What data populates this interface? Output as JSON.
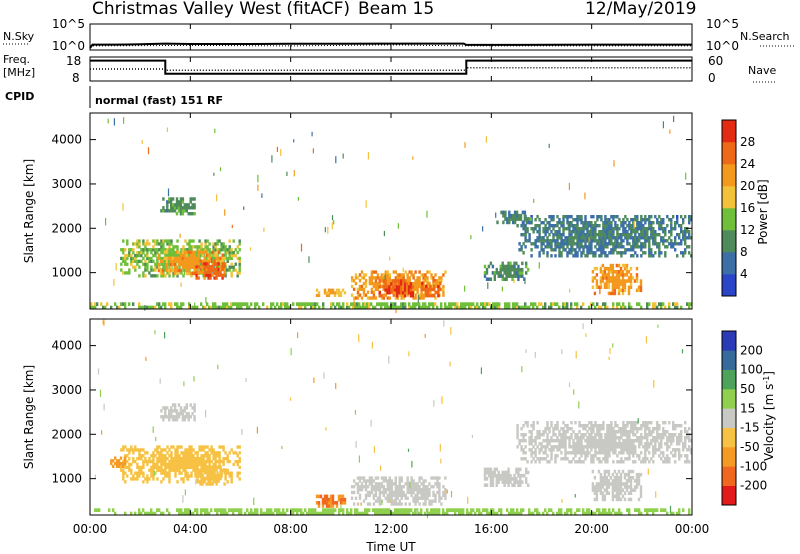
{
  "header": {
    "title": "Christmas Valley West (fitACF)",
    "beam": "Beam 15",
    "date": "12/May/2019"
  },
  "sky_panel": {
    "left_label": "N.Sky",
    "left_ticks": [
      "10^5",
      "10^0"
    ],
    "right_label": "N.Search",
    "right_ticks": [
      "10^5",
      "10^0"
    ]
  },
  "freq_panel": {
    "left_label_1": "Freq.",
    "left_label_2": "[MHz]",
    "left_ticks": [
      "18",
      "8"
    ],
    "right_label": "Nave",
    "right_ticks": [
      "60",
      "0"
    ]
  },
  "cpid_panel": {
    "label": "CPID",
    "text": "normal (fast) 151 RF"
  },
  "x_axis": {
    "label": "Time UT",
    "ticks": [
      "00:00",
      "04:00",
      "08:00",
      "12:00",
      "16:00",
      "20:00",
      "00:00"
    ]
  },
  "colors": {
    "power_scale": [
      "#2b45c8",
      "#3c6fa8",
      "#4e8a5a",
      "#6fbf3a",
      "#f2c23a",
      "#f39a1e",
      "#ef6a18",
      "#e32b14"
    ],
    "velocity_scale": [
      "#e31a1c",
      "#f06820",
      "#f59a25",
      "#f7c244",
      "#c8c8c4",
      "#8fd04e",
      "#4ea35a",
      "#356a9a",
      "#2b3bb8"
    ]
  },
  "chart_data": [
    {
      "type": "line",
      "title": "N.Sky / N.Search",
      "xlabel": "Time UT",
      "x_range_hours": [
        0,
        24
      ],
      "y_scale": "log",
      "ylim": [
        1,
        100000
      ],
      "series": [
        {
          "name": "N.Sky",
          "x": [
            0,
            0.1,
            1,
            2,
            3,
            4,
            6,
            8,
            10,
            12,
            14,
            14.9,
            15,
            17,
            20,
            24
          ],
          "y": [
            1,
            6,
            6,
            7,
            10,
            8,
            8,
            9,
            9,
            10,
            10,
            10,
            5,
            5,
            6,
            6
          ]
        },
        {
          "name": "N.Search",
          "x": [
            0,
            4,
            8,
            12,
            15,
            20,
            24
          ],
          "y": [
            3,
            4,
            3,
            5,
            3,
            3,
            3
          ]
        }
      ]
    },
    {
      "type": "line",
      "title": "Freq. / Nave",
      "xlabel": "Time UT",
      "x_range_hours": [
        0,
        24
      ],
      "ylim_left": [
        8,
        18
      ],
      "ylim_right": [
        0,
        60
      ],
      "series": [
        {
          "name": "Freq. [MHz]",
          "x": [
            0,
            3,
            3,
            15,
            15,
            24
          ],
          "y": [
            16.5,
            16.5,
            11.0,
            11.0,
            16.5,
            16.5
          ]
        },
        {
          "name": "Nave",
          "x": [
            0,
            3,
            3,
            15,
            15,
            24
          ],
          "y": [
            30,
            30,
            27,
            27,
            33,
            33
          ]
        }
      ]
    },
    {
      "type": "heatmap",
      "title": "Power",
      "xlabel": "Time UT",
      "ylabel": "Slant Range [km]",
      "x_range_hours": [
        0,
        24
      ],
      "ylim": [
        180,
        4600
      ],
      "y_ticks": [
        1000,
        2000,
        3000,
        4000
      ],
      "colorbar": {
        "label": "Power [dB]",
        "ticks": [
          4,
          8,
          12,
          16,
          20,
          24,
          28
        ],
        "range": [
          0,
          32
        ]
      },
      "regions": [
        {
          "t0": 0.0,
          "t1": 24.0,
          "r0": 180,
          "r1": 330,
          "value": 14
        },
        {
          "t0": 1.2,
          "t1": 6.0,
          "r0": 900,
          "r1": 1750,
          "value": 14
        },
        {
          "t0": 2.7,
          "t1": 5.4,
          "r0": 950,
          "r1": 1500,
          "value": 22
        },
        {
          "t0": 4.2,
          "t1": 5.4,
          "r0": 850,
          "r1": 1300,
          "value": 26
        },
        {
          "t0": 2.8,
          "t1": 4.2,
          "r0": 2300,
          "r1": 2700,
          "value": 11
        },
        {
          "t0": 9.0,
          "t1": 10.2,
          "r0": 460,
          "r1": 640,
          "value": 20
        },
        {
          "t0": 10.4,
          "t1": 14.2,
          "r0": 400,
          "r1": 1050,
          "value": 22
        },
        {
          "t0": 11.5,
          "t1": 12.9,
          "r0": 450,
          "r1": 850,
          "value": 28
        },
        {
          "t0": 13.2,
          "t1": 14.0,
          "r0": 450,
          "r1": 800,
          "value": 26
        },
        {
          "t0": 15.7,
          "t1": 17.5,
          "r0": 820,
          "r1": 1250,
          "value": 10
        },
        {
          "t0": 17.0,
          "t1": 24.0,
          "r0": 1350,
          "r1": 2300,
          "value": 8
        },
        {
          "t0": 20.0,
          "t1": 22.0,
          "r0": 500,
          "r1": 1200,
          "value": 22
        },
        {
          "t0": 16.2,
          "t1": 17.6,
          "r0": 2100,
          "r1": 2400,
          "value": 9
        }
      ]
    },
    {
      "type": "heatmap",
      "title": "Velocity",
      "xlabel": "Time UT",
      "ylabel": "Slant Range [km]",
      "x_range_hours": [
        0,
        24
      ],
      "ylim": [
        180,
        4600
      ],
      "y_ticks": [
        1000,
        2000,
        3000,
        4000
      ],
      "colorbar": {
        "label": "Velocity [m s^-1]",
        "ticks": [
          -200,
          -100,
          -50,
          -15,
          15,
          50,
          100,
          200
        ],
        "range": [
          -250,
          250
        ]
      },
      "regions": [
        {
          "t0": 0.0,
          "t1": 24.0,
          "r0": 180,
          "r1": 330,
          "value": 30
        },
        {
          "t0": 1.2,
          "t1": 6.0,
          "r0": 900,
          "r1": 1750,
          "value": -35
        },
        {
          "t0": 4.2,
          "t1": 5.4,
          "r0": 850,
          "r1": 1300,
          "value": -45
        },
        {
          "t0": 0.8,
          "t1": 1.5,
          "r0": 1250,
          "r1": 1500,
          "value": -90
        },
        {
          "t0": 2.8,
          "t1": 4.2,
          "r0": 2300,
          "r1": 2700,
          "value": 0
        },
        {
          "t0": 9.0,
          "t1": 10.2,
          "r0": 350,
          "r1": 640,
          "value": -100
        },
        {
          "t0": 10.4,
          "t1": 14.2,
          "r0": 400,
          "r1": 1050,
          "value": 0
        },
        {
          "t0": 15.7,
          "t1": 17.5,
          "r0": 820,
          "r1": 1250,
          "value": 0
        },
        {
          "t0": 17.0,
          "t1": 24.0,
          "r0": 1350,
          "r1": 2300,
          "value": 0
        },
        {
          "t0": 20.0,
          "t1": 22.0,
          "r0": 500,
          "r1": 1200,
          "value": 0
        }
      ]
    }
  ]
}
